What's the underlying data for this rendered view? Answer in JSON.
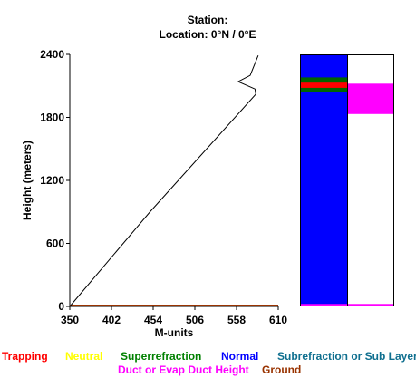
{
  "chart_data": {
    "type": "line",
    "title_line1": "Station:",
    "title_line2": "Location:   0°N /   0°E",
    "xlabel": "M-units",
    "ylabel": "Height (meters)",
    "xlim": [
      350,
      610
    ],
    "ylim": [
      0,
      2400
    ],
    "x_ticks": [
      "350",
      "402",
      "454",
      "506",
      "558",
      "610"
    ],
    "y_ticks": [
      "0",
      "600",
      "1200",
      "1800",
      "2400"
    ],
    "x_tick_values": [
      350,
      402,
      454,
      506,
      558,
      610
    ],
    "y_tick_values": [
      0,
      600,
      1200,
      1800,
      2400
    ],
    "series": [
      {
        "color": "#000000",
        "x": [
          350,
          450,
          582,
          581,
          560,
          575,
          585
        ],
        "y": [
          0,
          900,
          2020,
          2070,
          2140,
          2200,
          2390
        ]
      }
    ],
    "ground_line": {
      "color": "#993300",
      "x": [
        350,
        610
      ],
      "y": [
        0,
        0
      ]
    },
    "strips": [
      {
        "bands": [
          {
            "color": "#0000ff",
            "y_from": 0,
            "y_to": 2400
          },
          {
            "color": "#006400",
            "y_from": 2040,
            "y_to": 2180
          },
          {
            "color": "#ff0000",
            "y_from": 2080,
            "y_to": 2130
          },
          {
            "color": "#ff00ff",
            "y_from": 0,
            "y_to": 15
          }
        ]
      },
      {
        "bands": [
          {
            "color": "#ff00ff",
            "y_from": 1830,
            "y_to": 2120
          },
          {
            "color": "#ff00ff",
            "y_from": 0,
            "y_to": 15
          }
        ]
      }
    ]
  },
  "legend": {
    "row1": [
      {
        "label": "Trapping",
        "color": "#ff0000"
      },
      {
        "label": "Neutral",
        "color": "#ffff00"
      },
      {
        "label": "Superrefraction",
        "color": "#008000"
      },
      {
        "label": "Normal",
        "color": "#0000ff"
      },
      {
        "label": "Subrefraction or Sub Layer",
        "color": "#0f6f8f"
      }
    ],
    "row2": [
      {
        "label": "Duct or Evap Duct Height",
        "color": "#ff00ff"
      },
      {
        "label": "Ground",
        "color": "#993300"
      }
    ]
  }
}
